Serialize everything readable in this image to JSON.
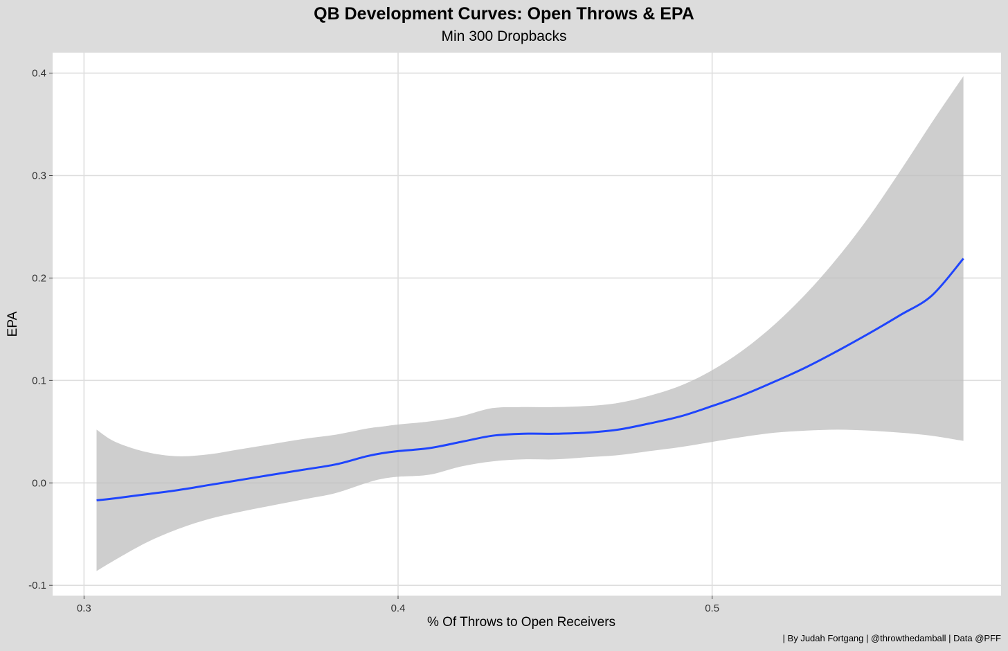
{
  "title": "QB Development Curves: Open Throws & EPA",
  "subtitle": "Min 300 Dropbacks",
  "caption": "| By Judah Fortgang | @throwthedamball | Data @PFF",
  "colors": {
    "background": "#dcdcdc",
    "panel": "#ffffff",
    "grid": "#dedede",
    "line": "#1f45fc",
    "ribbon": "#bebebe"
  },
  "chart_data": {
    "type": "line",
    "title": "QB Development Curves: Open Throws & EPA",
    "subtitle": "Min 300 Dropbacks",
    "xlabel": "% Of Throws to Open Receivers",
    "ylabel": "EPA",
    "xlim": [
      0.29,
      0.592
    ],
    "ylim": [
      -0.11,
      0.42
    ],
    "x_ticks": [
      0.3,
      0.4,
      0.5
    ],
    "x_tick_labels": [
      "0.3",
      "0.4",
      "0.5"
    ],
    "y_ticks": [
      -0.1,
      0.0,
      0.1,
      0.2,
      0.3,
      0.4
    ],
    "y_tick_labels": [
      "-0.1",
      "0.0",
      "0.1",
      "0.2",
      "0.3",
      "0.4"
    ],
    "grid": true,
    "series": [
      {
        "smoothed": true,
        "confidence_band": true,
        "x": [
          0.304,
          0.31,
          0.32,
          0.33,
          0.34,
          0.35,
          0.36,
          0.37,
          0.38,
          0.39,
          0.395,
          0.4,
          0.41,
          0.42,
          0.43,
          0.44,
          0.45,
          0.46,
          0.47,
          0.48,
          0.49,
          0.5,
          0.51,
          0.52,
          0.53,
          0.54,
          0.55,
          0.56,
          0.57,
          0.58
        ],
        "y": [
          -0.017,
          -0.015,
          -0.011,
          -0.007,
          -0.002,
          0.003,
          0.008,
          0.013,
          0.018,
          0.026,
          0.029,
          0.031,
          0.034,
          0.04,
          0.046,
          0.048,
          0.048,
          0.049,
          0.052,
          0.058,
          0.065,
          0.075,
          0.086,
          0.099,
          0.113,
          0.129,
          0.146,
          0.164,
          0.183,
          0.219
        ],
        "lower": [
          -0.086,
          -0.075,
          -0.058,
          -0.045,
          -0.035,
          -0.028,
          -0.022,
          -0.016,
          -0.01,
          0.0,
          0.004,
          0.006,
          0.008,
          0.016,
          0.021,
          0.023,
          0.023,
          0.025,
          0.027,
          0.031,
          0.035,
          0.04,
          0.045,
          0.049,
          0.051,
          0.052,
          0.051,
          0.049,
          0.046,
          0.041
        ],
        "upper": [
          0.052,
          0.04,
          0.03,
          0.026,
          0.028,
          0.033,
          0.038,
          0.043,
          0.047,
          0.053,
          0.055,
          0.057,
          0.06,
          0.065,
          0.073,
          0.074,
          0.074,
          0.075,
          0.078,
          0.085,
          0.095,
          0.11,
          0.13,
          0.155,
          0.185,
          0.22,
          0.26,
          0.305,
          0.352,
          0.397
        ]
      }
    ]
  }
}
